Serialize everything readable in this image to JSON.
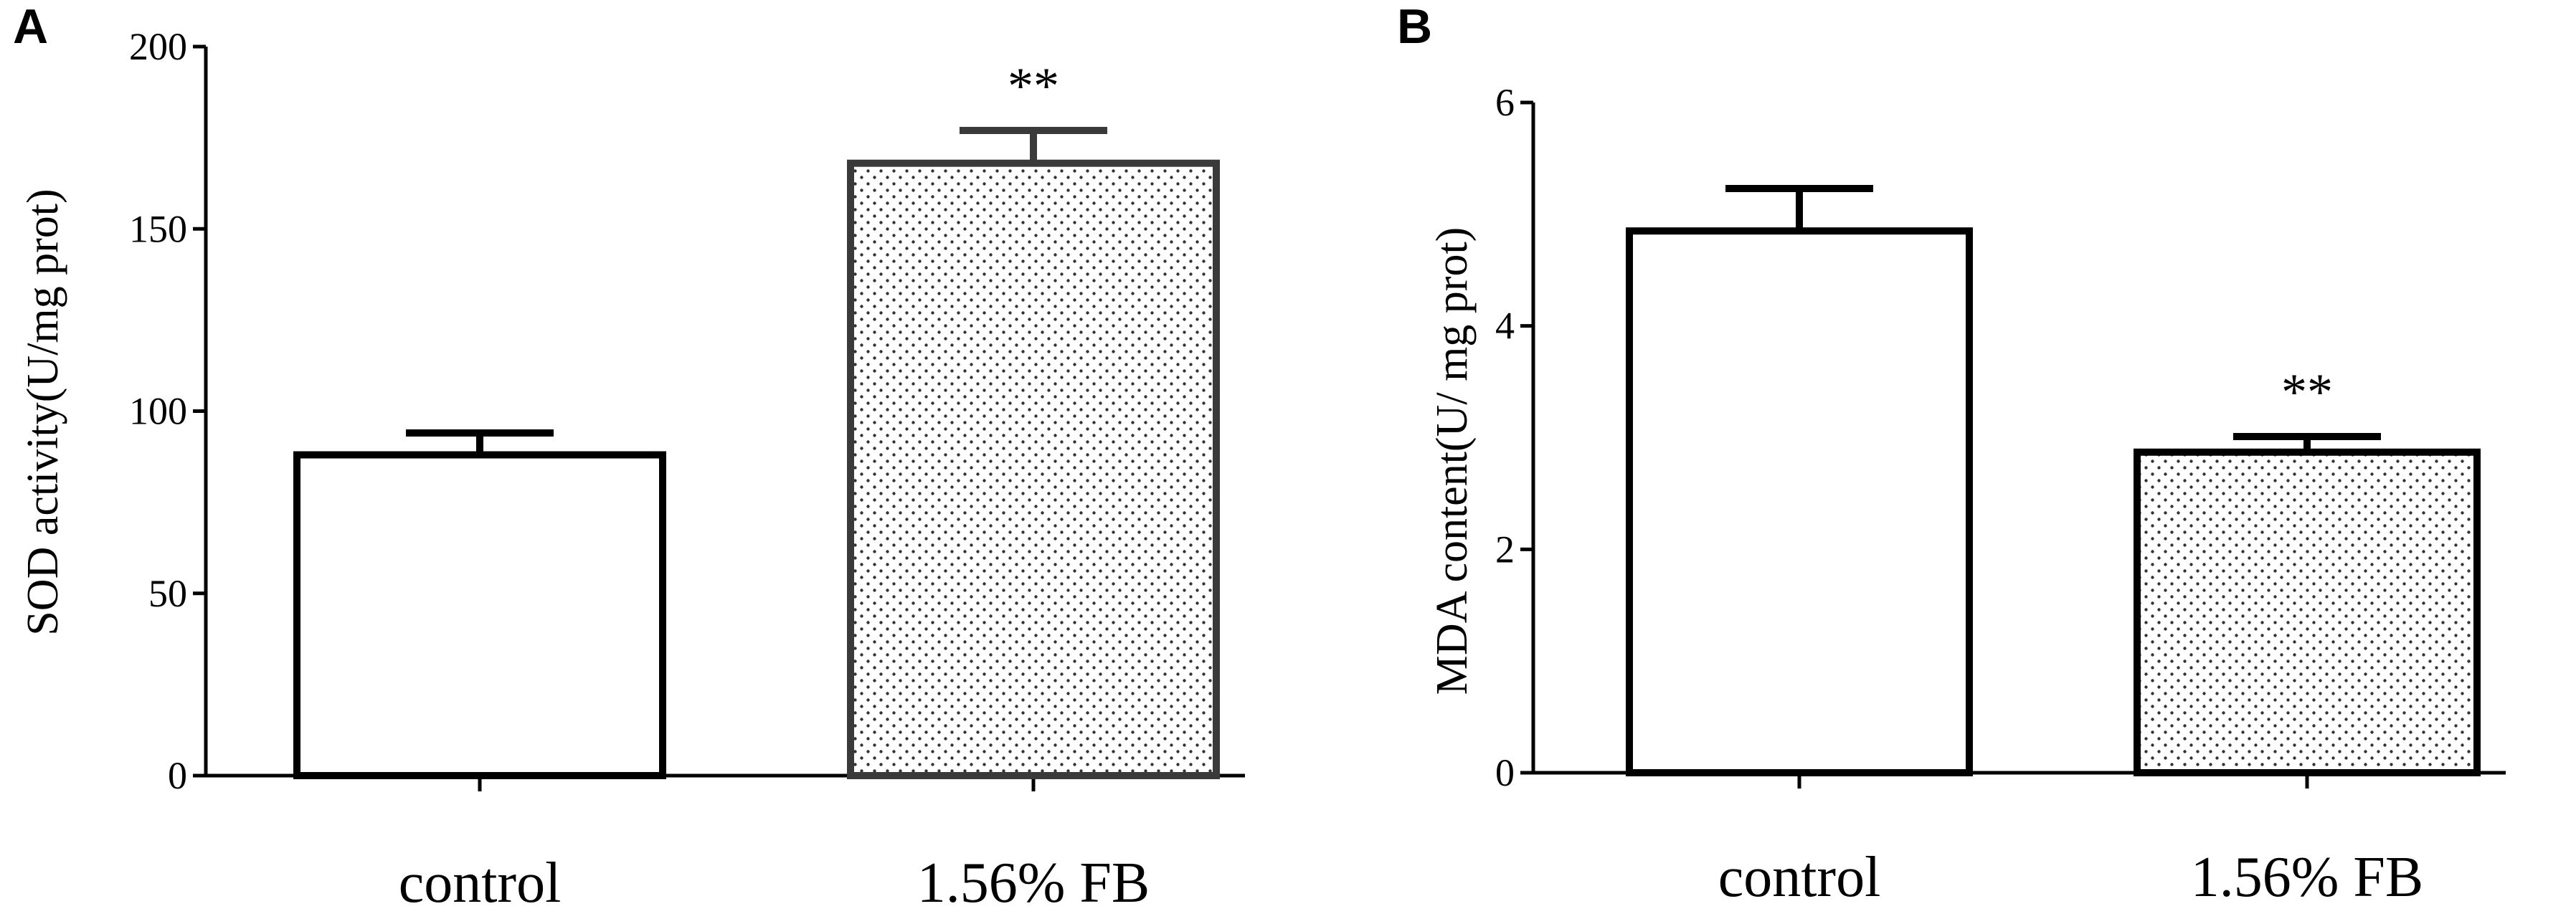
{
  "panels": [
    {
      "letter": "A",
      "ylabel": "SOD activity(U/mg prot)"
    },
    {
      "letter": "B",
      "ylabel": "MDA content(U/ mg prot)"
    }
  ],
  "chart_data": [
    {
      "type": "bar",
      "panel": "A",
      "categories": [
        "control",
        "1.56% FB"
      ],
      "values": [
        88,
        168
      ],
      "errors": [
        6,
        9
      ],
      "significance": [
        "",
        "**"
      ],
      "fills": [
        "white",
        "dotted"
      ],
      "ylabel": "SOD activity(U/mg prot)",
      "ylim": [
        0,
        200
      ],
      "yticks": [
        0,
        50,
        100,
        150,
        200
      ],
      "grid": false
    },
    {
      "type": "bar",
      "panel": "B",
      "categories": [
        "control",
        "1.56% FB"
      ],
      "values": [
        4.85,
        2.87
      ],
      "errors": [
        0.38,
        0.14
      ],
      "significance": [
        "",
        "**"
      ],
      "fills": [
        "white",
        "dotted"
      ],
      "ylabel": "MDA content(U/ mg prot)",
      "ylim": [
        0,
        6
      ],
      "yticks": [
        0,
        2,
        4,
        6
      ],
      "grid": false
    }
  ],
  "colors": {
    "bar_stroke": "#000000",
    "bar_stroke_dark": "#3a3a3a",
    "dot": "#333333",
    "background": "#ffffff"
  }
}
